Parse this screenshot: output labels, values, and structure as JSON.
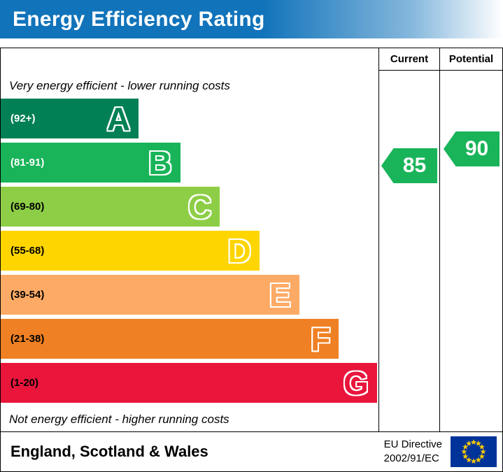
{
  "header": {
    "title": "Energy Efficiency Rating"
  },
  "table": {
    "current_label": "Current",
    "potential_label": "Potential",
    "top_note": "Very energy efficient - lower running costs",
    "bottom_note": "Not energy efficient - higher running costs"
  },
  "chart_data": {
    "type": "bar",
    "title": "Energy Efficiency Rating",
    "bands": [
      {
        "letter": "A",
        "range_label": "(92+)",
        "range": "92+",
        "color": "#008054",
        "text_color": "#ffffff",
        "width_pct": 36.5
      },
      {
        "letter": "B",
        "range_label": "(81-91)",
        "range": "81-91",
        "color": "#19b459",
        "text_color": "#ffffff",
        "width_pct": 47.5
      },
      {
        "letter": "C",
        "range_label": "(69-80)",
        "range": "69-80",
        "color": "#8dce46",
        "text_color": "#000000",
        "width_pct": 58.0
      },
      {
        "letter": "D",
        "range_label": "(55-68)",
        "range": "55-68",
        "color": "#ffd500",
        "text_color": "#000000",
        "width_pct": 68.5
      },
      {
        "letter": "E",
        "range_label": "(39-54)",
        "range": "39-54",
        "color": "#fcaa65",
        "text_color": "#000000",
        "width_pct": 79.0
      },
      {
        "letter": "F",
        "range_label": "(21-38)",
        "range": "21-38",
        "color": "#ef8023",
        "text_color": "#000000",
        "width_pct": 89.5
      },
      {
        "letter": "G",
        "range_label": "(1-20)",
        "range": "1-20",
        "color": "#e9153b",
        "text_color": "#000000",
        "width_pct": 99.6
      }
    ],
    "current": {
      "value": 85,
      "band": "B",
      "color": "#19b459"
    },
    "potential": {
      "value": 90,
      "band": "B",
      "color": "#19b459"
    },
    "legend_position": "none",
    "grid": false
  },
  "footer": {
    "region": "England, Scotland & Wales",
    "directive_line1": "EU Directive",
    "directive_line2": "2002/91/EC"
  },
  "colors": {
    "banner_blue": "#1173ba",
    "border": "#000000",
    "eu_flag_blue": "#003399",
    "eu_flag_star": "#ffcc00"
  }
}
